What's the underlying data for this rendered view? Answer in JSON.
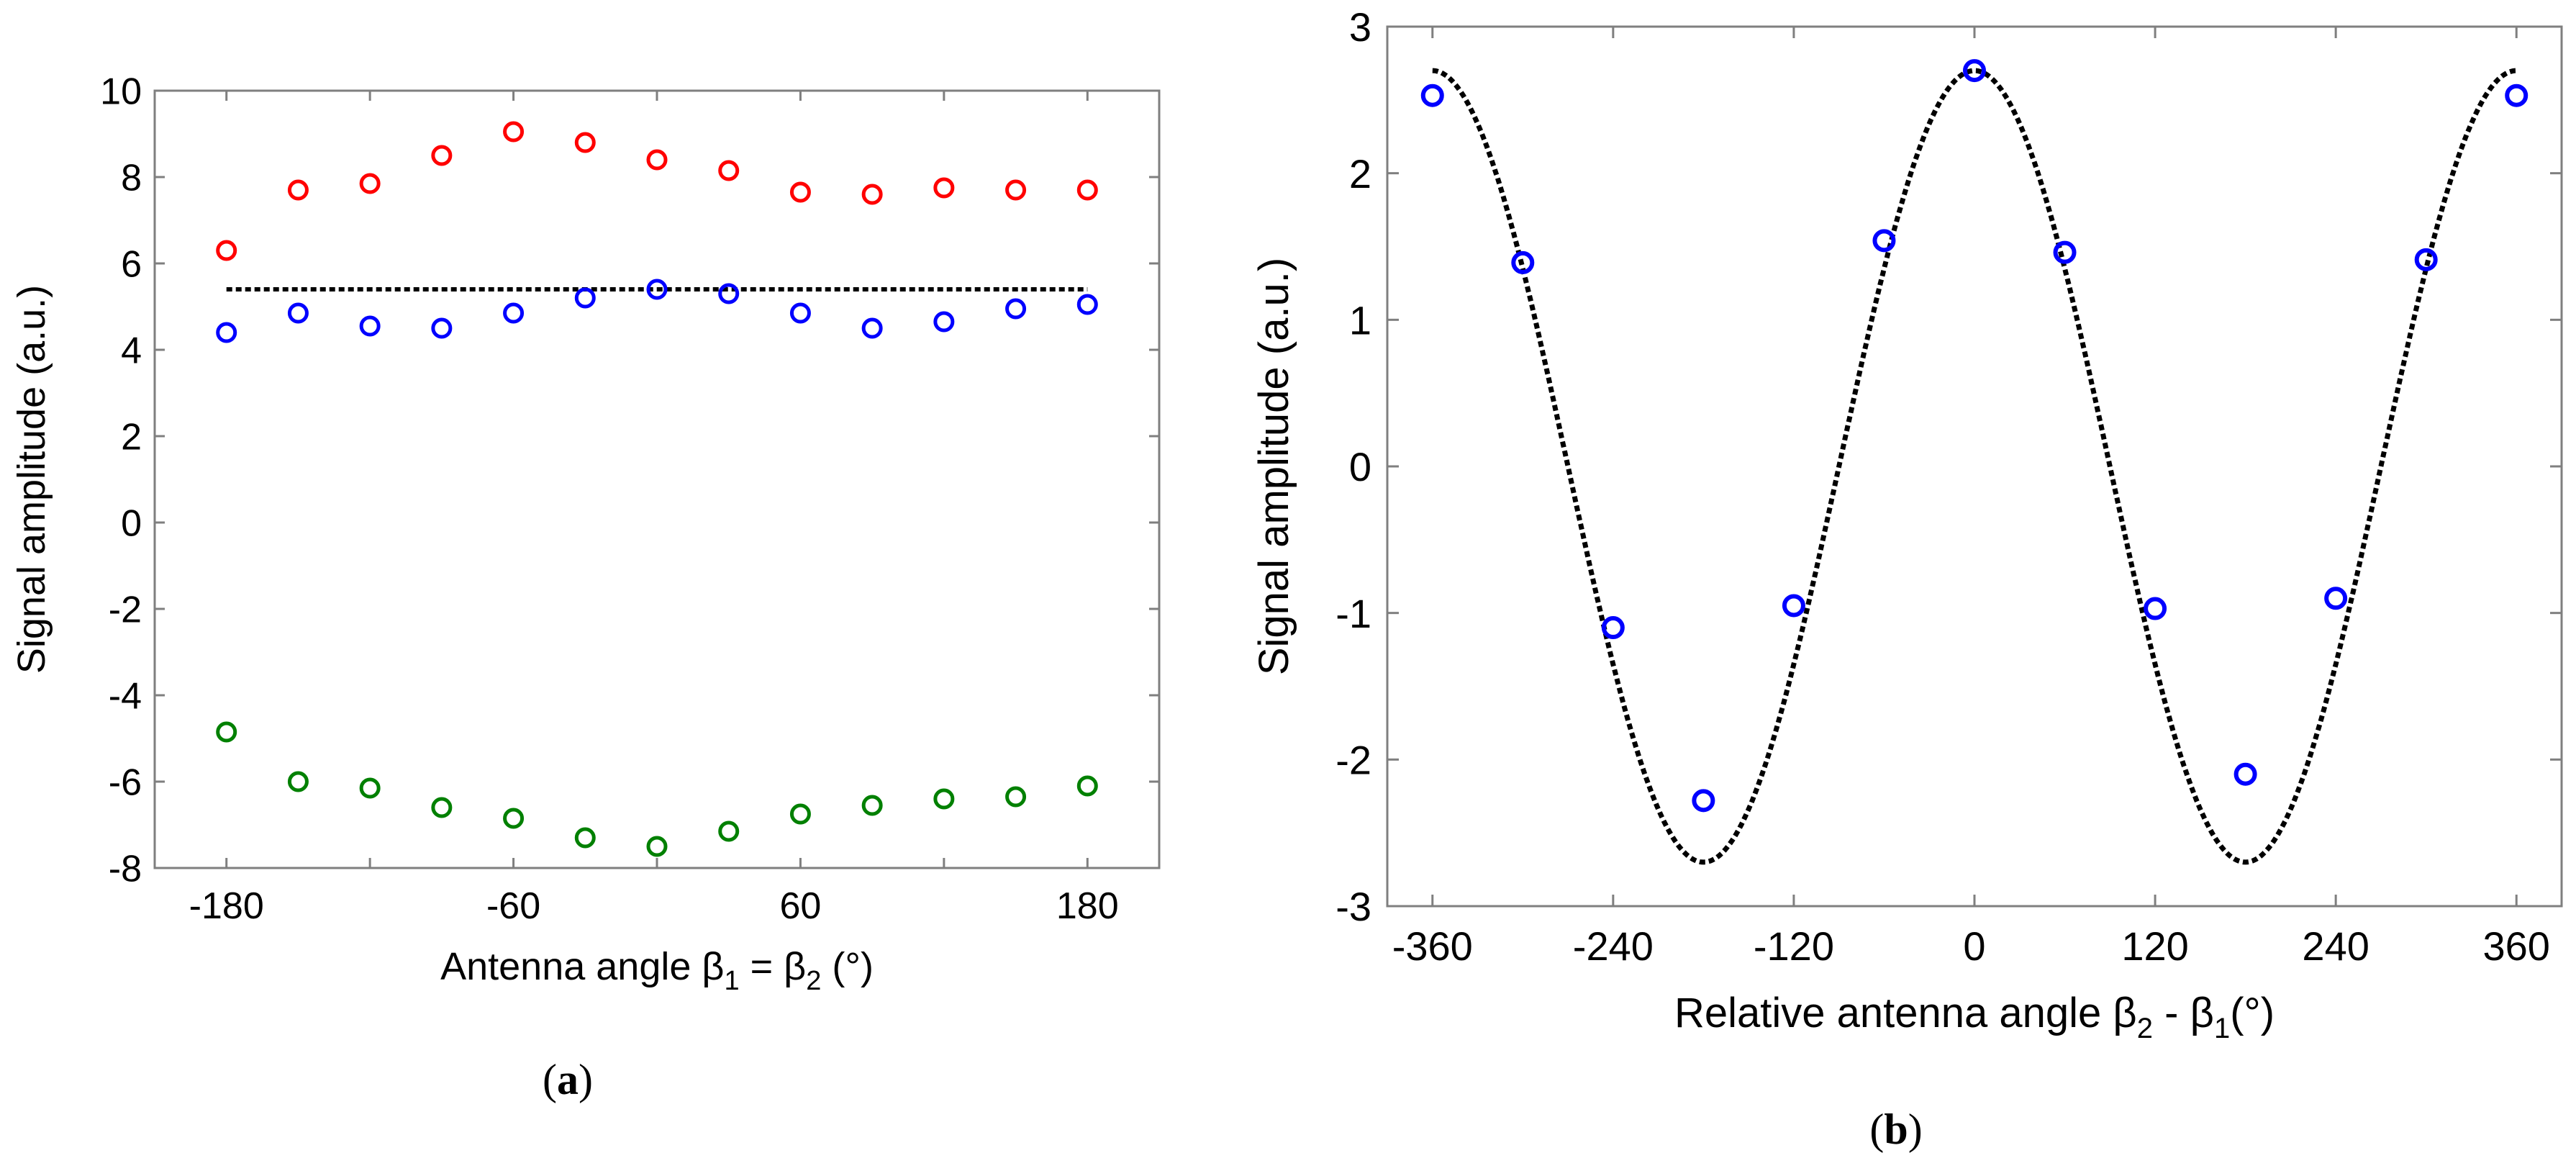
{
  "chart_data": [
    {
      "type": "scatter",
      "panel_label_prefix": "(",
      "panel_label_letter": "a",
      "panel_label_suffix": ")",
      "ylabel": "Signal amplitude (a.u.)",
      "xlabel_parts": {
        "text1": "Antenna angle ",
        "sym1": "β",
        "sub1": "1",
        "text2": " = ",
        "sym2": "β",
        "sub2": "2",
        "text3": " (°)"
      },
      "xlim": [
        -210,
        210
      ],
      "ylim": [
        -8,
        10
      ],
      "xticks": [
        -180,
        -60,
        60,
        180
      ],
      "xtick_labels": [
        "-180",
        "-60",
        "60",
        "180"
      ],
      "xticks_minor": [
        -180,
        -120,
        -60,
        0,
        60,
        120,
        180
      ],
      "yticks": [
        -8,
        -6,
        -4,
        -2,
        0,
        2,
        4,
        6,
        8,
        10
      ],
      "ytick_labels": [
        "-8",
        "-6",
        "-4",
        "-2",
        "0",
        "2",
        "4",
        "6",
        "8",
        "10"
      ],
      "x": [
        -180,
        -150,
        -120,
        -90,
        -60,
        -30,
        0,
        30,
        60,
        90,
        120,
        150,
        180
      ],
      "series": [
        {
          "name": "red",
          "color": "#ff0000",
          "values": [
            6.3,
            7.7,
            7.85,
            8.5,
            9.05,
            8.8,
            8.4,
            8.15,
            7.65,
            7.6,
            7.75,
            7.7,
            7.7
          ]
        },
        {
          "name": "blue",
          "color": "#0000ff",
          "values": [
            4.4,
            4.85,
            4.55,
            4.5,
            4.85,
            5.2,
            5.4,
            5.3,
            4.85,
            4.5,
            4.65,
            4.95,
            5.05
          ]
        },
        {
          "name": "green",
          "color": "#008000",
          "values": [
            -4.85,
            -6.0,
            -6.15,
            -6.6,
            -6.85,
            -7.3,
            -7.5,
            -7.15,
            -6.75,
            -6.55,
            -6.4,
            -6.35,
            -6.1
          ]
        }
      ],
      "reference_line": {
        "x": [
          -180,
          180
        ],
        "y": [
          5.4,
          5.4
        ],
        "color": "#000000",
        "style": "dotted"
      }
    },
    {
      "type": "scatter",
      "panel_label_prefix": "(",
      "panel_label_letter": "b",
      "panel_label_suffix": ")",
      "ylabel": "Signal amplitude (a.u.)",
      "xlabel_parts": {
        "text1": "Relative antenna angle ",
        "sym1": "β",
        "sub1": "2",
        "text2": " - ",
        "sym2": "β",
        "sub2": "1",
        "text3": "(°)"
      },
      "xlim": [
        -390,
        390
      ],
      "ylim": [
        -3,
        3
      ],
      "xticks": [
        -360,
        -240,
        -120,
        0,
        120,
        240,
        360
      ],
      "xtick_labels": [
        "-360",
        "-240",
        "-120",
        "0",
        "120",
        "240",
        "360"
      ],
      "yticks": [
        -3,
        -2,
        -1,
        0,
        1,
        2,
        3
      ],
      "ytick_labels": [
        "-3",
        "-2",
        "-1",
        "0",
        "1",
        "2",
        "3"
      ],
      "series": [
        {
          "name": "blue",
          "color": "#0000ff",
          "x": [
            -360,
            -300,
            -240,
            -180,
            -120,
            -60,
            0,
            60,
            120,
            180,
            240,
            300,
            360
          ],
          "values": [
            2.53,
            1.39,
            -1.1,
            -2.28,
            -0.95,
            1.54,
            2.7,
            1.46,
            -0.97,
            -2.1,
            -0.9,
            1.41,
            2.53
          ]
        }
      ],
      "fit_curve": {
        "amplitude": 2.7,
        "period_deg": 360,
        "phase_deg": 0,
        "x_range": [
          -360,
          360
        ],
        "color": "#000000",
        "style": "dotted"
      }
    }
  ]
}
